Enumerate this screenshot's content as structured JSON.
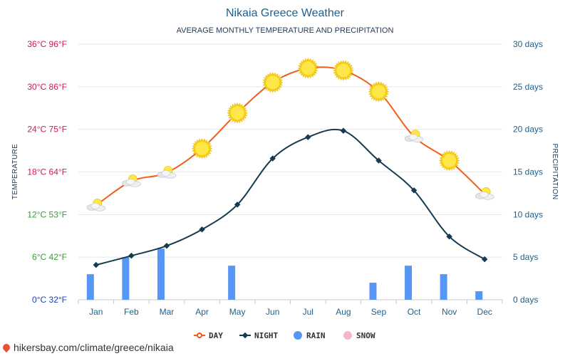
{
  "chart_data": {
    "type": "line",
    "title": "Nikaia Greece Weather",
    "subtitle": "AVERAGE MONTHLY TEMPERATURE AND PRECIPITATION",
    "ylabel_left": "TEMPERATURE",
    "ylabel_right": "PRECIPITATION",
    "categories": [
      "Jan",
      "Feb",
      "Mar",
      "Apr",
      "May",
      "Jun",
      "Jul",
      "Aug",
      "Sep",
      "Oct",
      "Nov",
      "Dec"
    ],
    "ylim_left": [
      0,
      36
    ],
    "ylim_right": [
      0,
      30
    ],
    "left_ticks": [
      {
        "value": 0,
        "label": "0°C 32°F",
        "color": "#1f3fbf"
      },
      {
        "value": 6,
        "label": "6°C 42°F",
        "color": "#3a9a3a"
      },
      {
        "value": 12,
        "label": "12°C 53°F",
        "color": "#3a9a3a"
      },
      {
        "value": 18,
        "label": "18°C 64°F",
        "color": "#d6145a"
      },
      {
        "value": 24,
        "label": "24°C 75°F",
        "color": "#d6145a"
      },
      {
        "value": 30,
        "label": "30°C 86°F",
        "color": "#d6145a"
      },
      {
        "value": 36,
        "label": "36°C 96°F",
        "color": "#d6145a"
      }
    ],
    "right_ticks": [
      {
        "value": 0,
        "label": "0 days"
      },
      {
        "value": 5,
        "label": "5 days"
      },
      {
        "value": 10,
        "label": "10 days"
      },
      {
        "value": 15,
        "label": "15 days"
      },
      {
        "value": 20,
        "label": "20 days"
      },
      {
        "value": 25,
        "label": "25 days"
      },
      {
        "value": 30,
        "label": "30 days"
      }
    ],
    "series": [
      {
        "name": "DAY",
        "axis": "left",
        "color": "#f25c19",
        "values": [
          13.3,
          16.7,
          17.9,
          21.3,
          26.3,
          30.6,
          32.6,
          32.3,
          29.3,
          23.0,
          19.6,
          14.9
        ],
        "weather_icons": [
          "partly-cloudy",
          "partly-cloudy",
          "partly-cloudy",
          "sun",
          "sun",
          "sun",
          "sun",
          "sun",
          "sun",
          "partly-cloudy",
          "sun",
          "partly-cloudy"
        ]
      },
      {
        "name": "NIGHT",
        "axis": "left",
        "color": "#163a4f",
        "values": [
          4.9,
          6.2,
          7.6,
          9.9,
          13.4,
          19.9,
          22.9,
          23.8,
          19.6,
          15.4,
          8.9,
          5.7
        ]
      },
      {
        "name": "RAIN",
        "axis": "right",
        "color": "#5896f5",
        "values": [
          3,
          5,
          6,
          0,
          4,
          0,
          0,
          0,
          2,
          4,
          3,
          1
        ]
      },
      {
        "name": "SNOW",
        "axis": "right",
        "color": "#f7b6c7",
        "values": [
          0,
          0,
          0,
          0,
          0,
          0,
          0,
          0,
          0,
          0,
          0,
          0
        ]
      }
    ],
    "grid": true,
    "legend_position": "bottom-center"
  },
  "footer": {
    "link_text": "hikersbay.com/climate/greece/nikaia",
    "pin_icon": "location-pin-icon"
  }
}
